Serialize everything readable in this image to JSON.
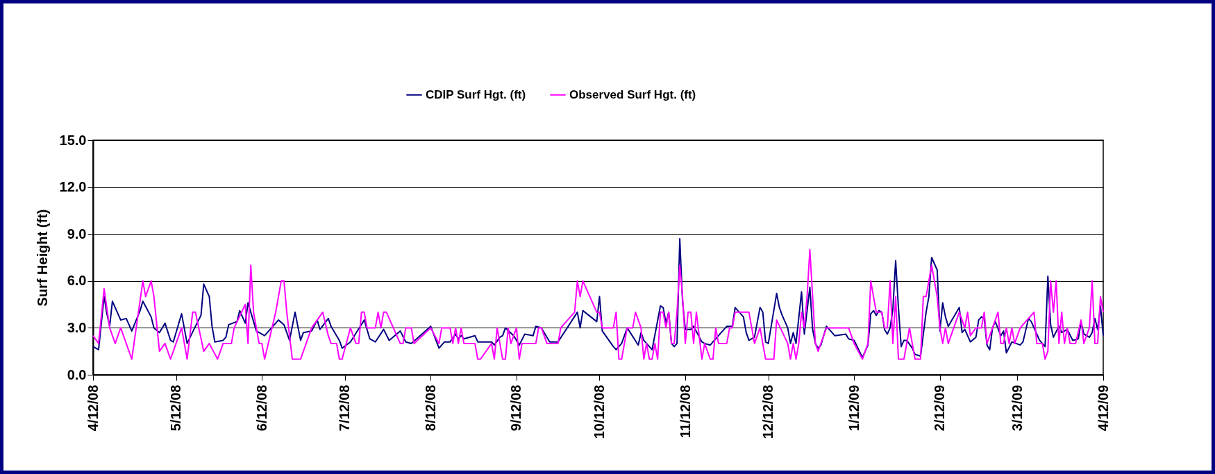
{
  "chart_data": {
    "type": "line",
    "ylabel": "Surf Height (ft)",
    "xlim": [
      "2008-04-12",
      "2009-04-12"
    ],
    "xticks": [
      {
        "value": "2008-04-12",
        "label": "4/12/08"
      },
      {
        "value": "2008-05-12",
        "label": "5/12/08"
      },
      {
        "value": "2008-06-12",
        "label": "6/12/08"
      },
      {
        "value": "2008-07-12",
        "label": "7/12/08"
      },
      {
        "value": "2008-08-12",
        "label": "8/12/08"
      },
      {
        "value": "2008-09-12",
        "label": "9/12/08"
      },
      {
        "value": "2008-10-12",
        "label": "10/12/08"
      },
      {
        "value": "2008-11-12",
        "label": "11/12/08"
      },
      {
        "value": "2008-12-12",
        "label": "12/12/08"
      },
      {
        "value": "2009-01-12",
        "label": "1/12/09"
      },
      {
        "value": "2009-02-12",
        "label": "2/12/09"
      },
      {
        "value": "2009-03-12",
        "label": "3/12/09"
      },
      {
        "value": "2009-04-12",
        "label": "4/12/09"
      }
    ],
    "ylim": [
      0,
      15
    ],
    "yticks": [
      {
        "value": 0,
        "label": "0.0"
      },
      {
        "value": 3,
        "label": "3.0"
      },
      {
        "value": 6,
        "label": "6.0"
      },
      {
        "value": 9,
        "label": "9.0"
      },
      {
        "value": 12,
        "label": "12.0"
      },
      {
        "value": 15,
        "label": "15.0"
      }
    ],
    "grid": "y",
    "legend": "top",
    "series": [
      {
        "name": "CDIP Surf Hgt. (ft)",
        "color": "#000080",
        "x": [
          "2008-04-12",
          "2008-04-14",
          "2008-04-16",
          "2008-04-17",
          "2008-04-18",
          "2008-04-19",
          "2008-04-22",
          "2008-04-24",
          "2008-04-26",
          "2008-04-29",
          "2008-04-30",
          "2008-05-03",
          "2008-05-04",
          "2008-05-06",
          "2008-05-08",
          "2008-05-10",
          "2008-05-11",
          "2008-05-14",
          "2008-05-16",
          "2008-05-19",
          "2008-05-21",
          "2008-05-22",
          "2008-05-24",
          "2008-05-25",
          "2008-05-26",
          "2008-05-29",
          "2008-05-30",
          "2008-05-31",
          "2008-06-03",
          "2008-06-04",
          "2008-06-06",
          "2008-06-07",
          "2008-06-09",
          "2008-06-10",
          "2008-06-13",
          "2008-06-18",
          "2008-06-20",
          "2008-06-22",
          "2008-06-24",
          "2008-06-26",
          "2008-06-27",
          "2008-06-30",
          "2008-07-02",
          "2008-07-03",
          "2008-07-06",
          "2008-07-07",
          "2008-07-10",
          "2008-07-11",
          "2008-07-14",
          "2008-07-19",
          "2008-07-21",
          "2008-07-23",
          "2008-07-26",
          "2008-07-28",
          "2008-08-01",
          "2008-08-03",
          "2008-08-05",
          "2008-08-12",
          "2008-08-15",
          "2008-08-17",
          "2008-08-19",
          "2008-08-21",
          "2008-08-22",
          "2008-08-23",
          "2008-08-24",
          "2008-08-28",
          "2008-08-29",
          "2008-09-03",
          "2008-09-04",
          "2008-09-06",
          "2008-09-07",
          "2008-09-08",
          "2008-09-11",
          "2008-09-13",
          "2008-09-15",
          "2008-09-18",
          "2008-09-19",
          "2008-09-21",
          "2008-09-24",
          "2008-09-27",
          "2008-10-04",
          "2008-10-05",
          "2008-10-06",
          "2008-10-11",
          "2008-10-12",
          "2008-10-13",
          "2008-10-17",
          "2008-10-18",
          "2008-10-19",
          "2008-10-20",
          "2008-10-22",
          "2008-10-26",
          "2008-10-27",
          "2008-10-28",
          "2008-10-31",
          "2008-11-03",
          "2008-11-04",
          "2008-11-05",
          "2008-11-06",
          "2008-11-07",
          "2008-11-08",
          "2008-11-09",
          "2008-11-10",
          "2008-11-11",
          "2008-11-12",
          "2008-11-14",
          "2008-11-15",
          "2008-11-18",
          "2008-11-19",
          "2008-11-21",
          "2008-11-24",
          "2008-11-27",
          "2008-11-29",
          "2008-11-30",
          "2008-12-03",
          "2008-12-04",
          "2008-12-05",
          "2008-12-07",
          "2008-12-09",
          "2008-12-10",
          "2008-12-11",
          "2008-12-12",
          "2008-12-15",
          "2008-12-16",
          "2008-12-17",
          "2008-12-19",
          "2008-12-20",
          "2008-12-21",
          "2008-12-22",
          "2008-12-24",
          "2008-12-25",
          "2008-12-27",
          "2008-12-28",
          "2008-12-29",
          "2008-12-30",
          "2008-12-31",
          "2009-01-02",
          "2009-01-05",
          "2009-01-09",
          "2009-01-10",
          "2009-01-12",
          "2009-01-15",
          "2009-01-17",
          "2009-01-18",
          "2009-01-19",
          "2009-01-20",
          "2009-01-21",
          "2009-01-22",
          "2009-01-23",
          "2009-01-24",
          "2009-01-25",
          "2009-01-26",
          "2009-01-27",
          "2009-01-28",
          "2009-01-29",
          "2009-01-30",
          "2009-01-31",
          "2009-02-02",
          "2009-02-03",
          "2009-02-05",
          "2009-02-07",
          "2009-02-08",
          "2009-02-09",
          "2009-02-11",
          "2009-02-12",
          "2009-02-13",
          "2009-02-14",
          "2009-02-15",
          "2009-02-19",
          "2009-02-20",
          "2009-02-21",
          "2009-02-23",
          "2009-02-25",
          "2009-02-26",
          "2009-02-27",
          "2009-02-28",
          "2009-03-01",
          "2009-03-02",
          "2009-03-03",
          "2009-03-04",
          "2009-03-06",
          "2009-03-07",
          "2009-03-08",
          "2009-03-10",
          "2009-03-13",
          "2009-03-14",
          "2009-03-16",
          "2009-03-17",
          "2009-03-20",
          "2009-03-22",
          "2009-03-23",
          "2009-03-24",
          "2009-03-25",
          "2009-03-27",
          "2009-03-28",
          "2009-03-30",
          "2009-04-01",
          "2009-04-03",
          "2009-04-04",
          "2009-04-05",
          "2009-04-07",
          "2009-04-08",
          "2009-04-09",
          "2009-04-10",
          "2009-04-11",
          "2009-04-12"
        ],
        "values": [
          1.8,
          1.6,
          5.0,
          3.9,
          3.1,
          4.7,
          3.5,
          3.6,
          2.8,
          4.1,
          4.7,
          3.7,
          3.0,
          2.7,
          3.3,
          2.2,
          2.1,
          3.9,
          2.0,
          3.1,
          3.8,
          5.8,
          5.0,
          3.1,
          2.1,
          2.2,
          2.4,
          3.2,
          3.4,
          4.1,
          3.3,
          4.6,
          3.4,
          2.8,
          2.5,
          3.5,
          3.2,
          2.2,
          4.0,
          2.2,
          2.7,
          2.8,
          3.5,
          2.9,
          3.6,
          3.1,
          2.2,
          1.7,
          2.1,
          3.5,
          2.3,
          2.1,
          2.9,
          2.2,
          2.8,
          2.1,
          2.0,
          3.1,
          1.7,
          2.1,
          2.1,
          2.6,
          2.3,
          2.5,
          2.3,
          2.5,
          2.1,
          2.1,
          1.9,
          2.4,
          2.5,
          3.0,
          2.5,
          1.9,
          2.6,
          2.5,
          3.1,
          3.0,
          2.1,
          2.1,
          4.0,
          3.0,
          4.1,
          3.4,
          5.0,
          2.8,
          1.8,
          1.6,
          1.8,
          2.0,
          3.0,
          1.9,
          2.7,
          2.2,
          1.6,
          4.4,
          4.3,
          3.3,
          4.0,
          2.0,
          1.8,
          2.0,
          8.7,
          4.7,
          2.9,
          2.9,
          3.1,
          2.1,
          2.0,
          1.9,
          2.5,
          3.1,
          3.1,
          4.3,
          3.7,
          2.7,
          2.2,
          2.4,
          4.3,
          4.0,
          2.1,
          2.0,
          5.2,
          4.3,
          3.8,
          3.0,
          2.0,
          2.7,
          2.0,
          5.3,
          2.6,
          5.6,
          2.9,
          2.0,
          1.7,
          1.9,
          3.1,
          2.5,
          2.6,
          2.3,
          2.2,
          1.1,
          1.9,
          3.9,
          4.1,
          3.8,
          4.1,
          4.0,
          2.9,
          2.6,
          3.0,
          4.2,
          7.3,
          4.3,
          1.8,
          2.2,
          2.2,
          1.7,
          1.3,
          1.2,
          4.0,
          5.0,
          7.5,
          6.7,
          2.8,
          4.6,
          3.7,
          3.1,
          4.3,
          2.7,
          2.9,
          2.1,
          2.4,
          3.5,
          3.7,
          3.6,
          1.9,
          1.6,
          3.0,
          3.4,
          2.5,
          2.8,
          1.4,
          2.1,
          1.9,
          2.1,
          3.6,
          3.4,
          2.2,
          1.8,
          6.3,
          3.2,
          2.4,
          3.1,
          2.7,
          2.9,
          2.2,
          2.3,
          3.4,
          2.6,
          2.4,
          2.7,
          3.6,
          2.9,
          4.4,
          2.5
        ]
      },
      {
        "name": "Observed Surf Hgt. (ft)",
        "color": "#ff00ff",
        "x": [
          "2008-04-12",
          "2008-04-14",
          "2008-04-16",
          "2008-04-18",
          "2008-04-20",
          "2008-04-22",
          "2008-04-26",
          "2008-04-30",
          "2008-05-01",
          "2008-05-03",
          "2008-05-04",
          "2008-05-06",
          "2008-05-08",
          "2008-05-10",
          "2008-05-14",
          "2008-05-16",
          "2008-05-18",
          "2008-05-19",
          "2008-05-22",
          "2008-05-24",
          "2008-05-27",
          "2008-05-29",
          "2008-06-01",
          "2008-06-02",
          "2008-06-06",
          "2008-06-07",
          "2008-06-08",
          "2008-06-09",
          "2008-06-11",
          "2008-06-12",
          "2008-06-13",
          "2008-06-17",
          "2008-06-19",
          "2008-06-20",
          "2008-06-21",
          "2008-06-23",
          "2008-06-26",
          "2008-06-30",
          "2008-07-04",
          "2008-07-06",
          "2008-07-07",
          "2008-07-09",
          "2008-07-10",
          "2008-07-11",
          "2008-07-14",
          "2008-07-16",
          "2008-07-17",
          "2008-07-18",
          "2008-07-19",
          "2008-07-20",
          "2008-07-23",
          "2008-07-24",
          "2008-07-25",
          "2008-07-26",
          "2008-07-27",
          "2008-08-01",
          "2008-08-02",
          "2008-08-03",
          "2008-08-05",
          "2008-08-06",
          "2008-08-12",
          "2008-08-15",
          "2008-08-16",
          "2008-08-19",
          "2008-08-20",
          "2008-08-21",
          "2008-08-22",
          "2008-08-23",
          "2008-08-24",
          "2008-08-28",
          "2008-08-29",
          "2008-08-30",
          "2008-09-03",
          "2008-09-04",
          "2008-09-05",
          "2008-09-06",
          "2008-09-07",
          "2008-09-08",
          "2008-09-09",
          "2008-09-10",
          "2008-09-12",
          "2008-09-13",
          "2008-09-14",
          "2008-09-19",
          "2008-09-20",
          "2008-09-21",
          "2008-09-23",
          "2008-09-27",
          "2008-09-28",
          "2008-10-03",
          "2008-10-04",
          "2008-10-05",
          "2008-10-06",
          "2008-10-11",
          "2008-10-12",
          "2008-10-13",
          "2008-10-17",
          "2008-10-18",
          "2008-10-19",
          "2008-10-20",
          "2008-10-21",
          "2008-10-22",
          "2008-10-24",
          "2008-10-25",
          "2008-10-26",
          "2008-10-27",
          "2008-10-28",
          "2008-10-29",
          "2008-10-30",
          "2008-10-31",
          "2008-11-01",
          "2008-11-02",
          "2008-11-03",
          "2008-11-04",
          "2008-11-05",
          "2008-11-06",
          "2008-11-07",
          "2008-11-08",
          "2008-11-09",
          "2008-11-10",
          "2008-11-11",
          "2008-11-12",
          "2008-11-13",
          "2008-11-14",
          "2008-11-15",
          "2008-11-16",
          "2008-11-18",
          "2008-11-19",
          "2008-11-21",
          "2008-11-22",
          "2008-11-23",
          "2008-11-24",
          "2008-11-27",
          "2008-11-28",
          "2008-11-29",
          "2008-11-30",
          "2008-12-05",
          "2008-12-07",
          "2008-12-09",
          "2008-12-11",
          "2008-12-14",
          "2008-12-15",
          "2008-12-19",
          "2008-12-20",
          "2008-12-21",
          "2008-12-22",
          "2008-12-23",
          "2008-12-24",
          "2008-12-25",
          "2008-12-26",
          "2008-12-27",
          "2008-12-29",
          "2008-12-30",
          "2008-12-31",
          "2009-01-02",
          "2009-01-10",
          "2009-01-12",
          "2009-01-15",
          "2009-01-17",
          "2009-01-18",
          "2009-01-19",
          "2009-01-20",
          "2009-01-22",
          "2009-01-23",
          "2009-01-24",
          "2009-01-25",
          "2009-01-26",
          "2009-01-27",
          "2009-01-28",
          "2009-01-30",
          "2009-02-01",
          "2009-02-03",
          "2009-02-05",
          "2009-02-06",
          "2009-02-07",
          "2009-02-09",
          "2009-02-11",
          "2009-02-12",
          "2009-02-13",
          "2009-02-14",
          "2009-02-15",
          "2009-02-17",
          "2009-02-19",
          "2009-02-21",
          "2009-02-22",
          "2009-02-23",
          "2009-02-25",
          "2009-02-27",
          "2009-02-28",
          "2009-03-01",
          "2009-03-03",
          "2009-03-05",
          "2009-03-06",
          "2009-03-07",
          "2009-03-08",
          "2009-03-09",
          "2009-03-10",
          "2009-03-11",
          "2009-03-13",
          "2009-03-18",
          "2009-03-19",
          "2009-03-21",
          "2009-03-22",
          "2009-03-23",
          "2009-03-24",
          "2009-03-25",
          "2009-03-26",
          "2009-03-27",
          "2009-03-28",
          "2009-03-29",
          "2009-03-30",
          "2009-03-31",
          "2009-04-02",
          "2009-04-04",
          "2009-04-05",
          "2009-04-07",
          "2009-04-08",
          "2009-04-09",
          "2009-04-10",
          "2009-04-11",
          "2009-04-12"
        ],
        "values": [
          2.5,
          2.0,
          5.5,
          3.0,
          2.0,
          3.0,
          1.0,
          6.0,
          5.0,
          6.0,
          5.0,
          1.5,
          2.0,
          1.0,
          3.0,
          1.0,
          4.0,
          4.0,
          1.5,
          2.0,
          1.0,
          2.0,
          2.0,
          3.0,
          4.5,
          2.0,
          7.0,
          4.0,
          2.0,
          2.0,
          1.0,
          4.0,
          6.0,
          6.0,
          4.0,
          1.0,
          1.0,
          3.0,
          4.0,
          2.5,
          2.0,
          2.0,
          1.0,
          1.0,
          3.0,
          2.0,
          2.0,
          4.0,
          4.0,
          3.0,
          3.0,
          4.0,
          3.0,
          4.0,
          4.0,
          2.0,
          2.0,
          3.0,
          3.0,
          2.0,
          3.0,
          2.0,
          3.0,
          3.0,
          2.0,
          3.0,
          2.0,
          3.0,
          2.0,
          2.0,
          1.0,
          1.0,
          2.0,
          1.0,
          3.0,
          2.0,
          1.0,
          1.0,
          3.0,
          2.0,
          3.0,
          1.0,
          2.0,
          2.0,
          3.0,
          3.0,
          2.0,
          2.0,
          3.0,
          4.0,
          6.0,
          5.0,
          6.0,
          4.0,
          4.0,
          3.0,
          3.0,
          4.0,
          1.0,
          1.0,
          2.0,
          3.0,
          3.0,
          4.0,
          3.5,
          3.0,
          1.0,
          2.0,
          1.0,
          1.0,
          2.0,
          1.0,
          4.0,
          4.0,
          3.0,
          4.0,
          2.0,
          2.0,
          4.0,
          7.0,
          5.0,
          2.0,
          4.0,
          4.0,
          2.0,
          4.0,
          1.0,
          2.0,
          1.0,
          1.0,
          3.0,
          2.0,
          2.0,
          3.0,
          3.0,
          4.0,
          4.0,
          2.0,
          3.0,
          1.0,
          1.0,
          3.5,
          2.0,
          1.0,
          2.0,
          1.0,
          2.0,
          4.0,
          3.0,
          5.0,
          8.0,
          2.0,
          1.5,
          2.0,
          3.0,
          3.0,
          2.0,
          1.0,
          2.0,
          6.0,
          5.0,
          4.0,
          4.0,
          3.0,
          3.0,
          6.0,
          2.0,
          5.0,
          1.0,
          1.0,
          3.0,
          1.0,
          1.0,
          5.0,
          5.0,
          7.0,
          5.0,
          3.0,
          2.0,
          3.0,
          2.0,
          3.0,
          4.0,
          3.0,
          4.0,
          2.5,
          3.0,
          3.0,
          4.0,
          2.0,
          3.0,
          4.0,
          2.0,
          2.0,
          3.0,
          2.0,
          3.0,
          2.0,
          3.0,
          4.0,
          2.0,
          2.0,
          1.0,
          1.5,
          6.0,
          4.0,
          6.0,
          2.0,
          4.0,
          2.0,
          3.0,
          2.0,
          2.0,
          3.5,
          2.0,
          3.0,
          6.0,
          2.0,
          2.0,
          5.0,
          4.0
        ]
      }
    ]
  }
}
